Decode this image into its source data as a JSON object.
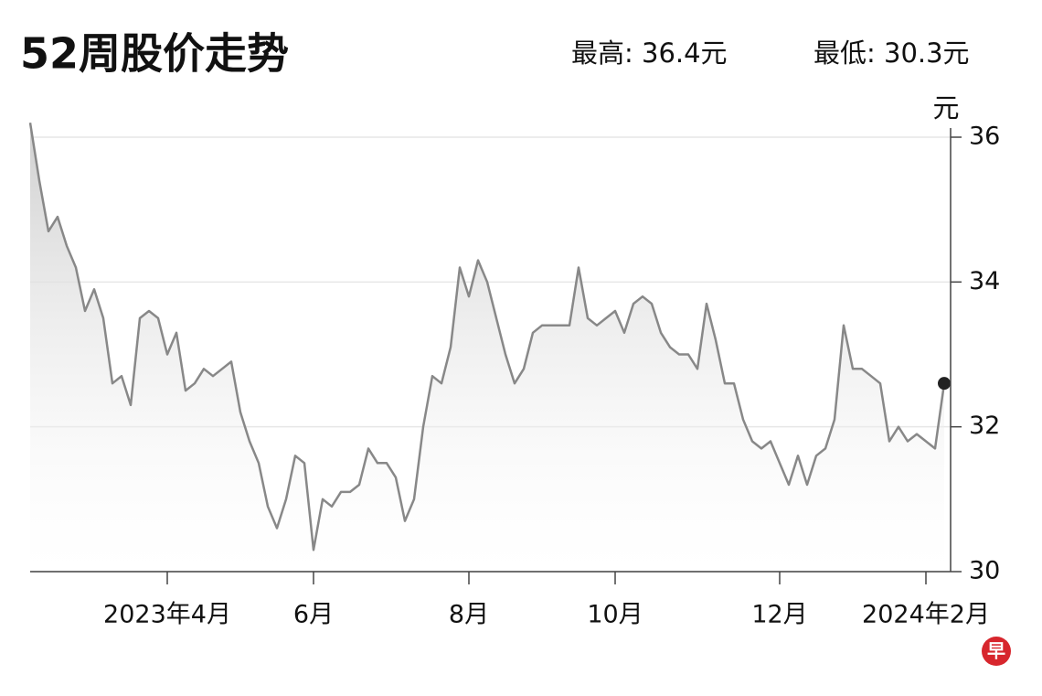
{
  "chart_data": {
    "type": "line",
    "title": "52周股价走势",
    "annotations": [
      "最高: 36.4元",
      "最低: 30.3元"
    ],
    "y_label": "元",
    "logo": "早",
    "categories": [
      null,
      null,
      null,
      null,
      null,
      null,
      null,
      null,
      null,
      null,
      null,
      null,
      null,
      null,
      null,
      "2023年4月",
      null,
      null,
      null,
      null,
      null,
      null,
      null,
      null,
      null,
      null,
      null,
      null,
      null,
      null,
      null,
      "6月",
      null,
      null,
      null,
      null,
      null,
      null,
      null,
      null,
      null,
      null,
      null,
      null,
      null,
      null,
      null,
      null,
      "8月",
      null,
      null,
      null,
      null,
      null,
      null,
      null,
      null,
      null,
      null,
      null,
      null,
      null,
      null,
      null,
      "10月",
      null,
      null,
      null,
      null,
      null,
      null,
      null,
      null,
      null,
      null,
      null,
      null,
      null,
      null,
      null,
      null,
      null,
      "12月",
      null,
      null,
      null,
      null,
      null,
      null,
      null,
      null,
      null,
      null,
      null,
      null,
      null,
      null,
      null,
      "2024年2月",
      null,
      null
    ],
    "values": [
      36.2,
      35.4,
      34.7,
      34.9,
      34.5,
      34.2,
      33.6,
      33.9,
      33.5,
      32.6,
      32.7,
      32.3,
      33.5,
      33.6,
      33.5,
      33.0,
      33.3,
      32.5,
      32.6,
      32.8,
      32.7,
      32.8,
      32.9,
      32.2,
      31.8,
      31.5,
      30.9,
      30.6,
      31.0,
      31.6,
      31.5,
      30.3,
      31.0,
      30.9,
      31.1,
      31.1,
      31.2,
      31.7,
      31.5,
      31.5,
      31.3,
      30.7,
      31.0,
      32.0,
      32.7,
      32.6,
      33.1,
      34.2,
      33.8,
      34.3,
      34.0,
      33.5,
      33.0,
      32.6,
      32.8,
      33.3,
      33.4,
      33.4,
      33.4,
      33.4,
      34.2,
      33.5,
      33.4,
      33.5,
      33.6,
      33.3,
      33.7,
      33.8,
      33.7,
      33.3,
      33.1,
      33.0,
      33.0,
      32.8,
      33.7,
      33.2,
      32.6,
      32.6,
      32.1,
      31.8,
      31.7,
      31.8,
      31.5,
      31.2,
      31.6,
      31.2,
      31.6,
      31.7,
      32.1,
      33.4,
      32.8,
      32.8,
      32.7,
      32.6,
      31.8,
      32.0,
      31.8,
      31.9,
      31.8,
      31.7,
      32.6
    ],
    "color": "#888888",
    "ylim": [
      30,
      36
    ],
    "yticks": [
      30,
      32,
      34,
      36
    ],
    "grid": true
  }
}
